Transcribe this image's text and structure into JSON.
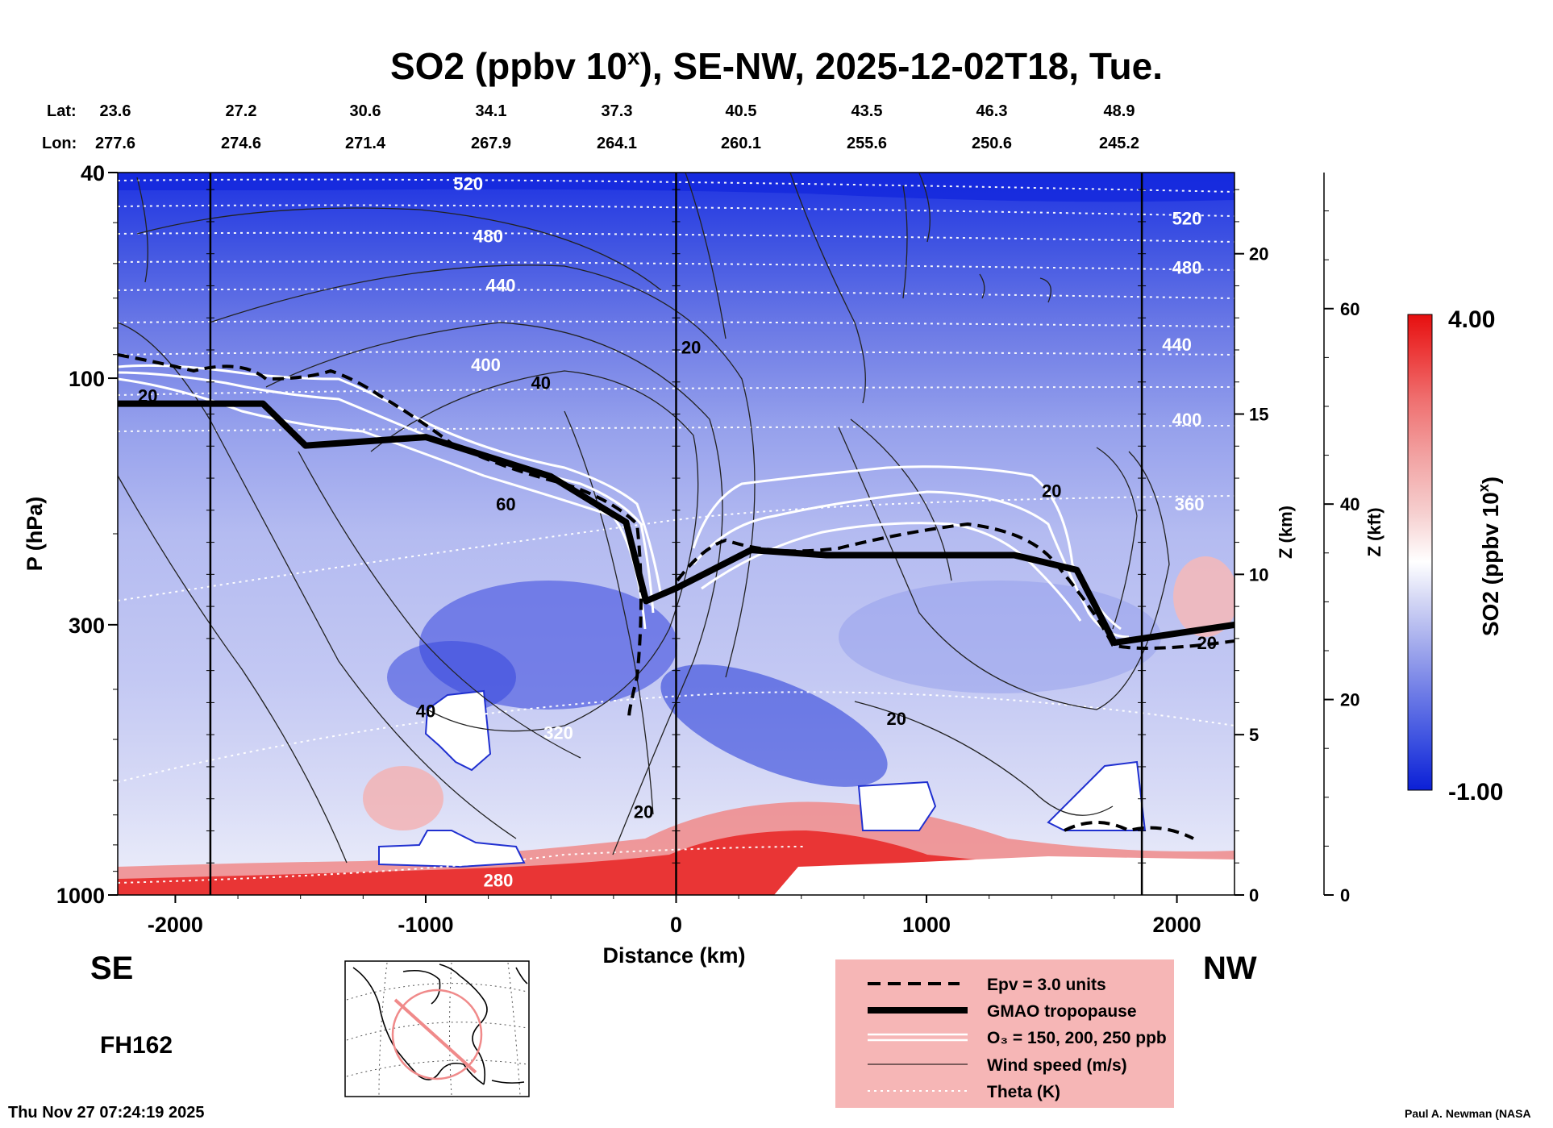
{
  "title": "SO2 (ppbv 10",
  "title_sup": "x",
  "title_rest": "), SE-NW, 2025-12-02T18, Tue.",
  "header": {
    "lat_label": "Lat:",
    "lon_label": "Lon:",
    "lat": [
      "23.6",
      "27.2",
      "30.6",
      "34.1",
      "37.3",
      "40.5",
      "43.5",
      "46.3",
      "48.9"
    ],
    "lon": [
      "277.6",
      "274.6",
      "271.4",
      "267.9",
      "264.1",
      "260.1",
      "255.6",
      "250.6",
      "245.2"
    ]
  },
  "labels": {
    "direction_left": "SE",
    "direction_right": "NW",
    "forecast_hour": "FH162",
    "timestamp": "Thu Nov 27 07:24:19 2025",
    "credit": "Paul A. Newman (NASA"
  },
  "legend": {
    "items": [
      {
        "label": "Epv = 3.0 units",
        "style": "dashed-thick"
      },
      {
        "label": "GMAO tropopause",
        "style": "solid-heavy"
      },
      {
        "label": "O₃ = 150, 200, 250 ppb",
        "style": "double-white"
      },
      {
        "label": "Wind speed (m/s)",
        "style": "thin-black"
      },
      {
        "label": "Theta (K)",
        "style": "dotted-white"
      }
    ]
  },
  "colorbar": {
    "max_label": "4.00",
    "min_label": "-1.00",
    "title": "SO2 (ppbv 10",
    "title_sup": "x",
    "title_end": ")",
    "colors": [
      "#0b1fd6",
      "#3a4fe0",
      "#6c7ae6",
      "#a0a8ec",
      "#d4d7f5",
      "#ffffff",
      "#f6d0d0",
      "#f2a3a3",
      "#ef7070",
      "#ec3a3a",
      "#e60f0f"
    ]
  },
  "colors": {
    "background_field": "#a9b1ee",
    "upper_field": "#2f45e6",
    "surface_red": "#ee3030",
    "legend_bg": "#f6b6b6"
  },
  "chart_data": {
    "type": "heatmap",
    "title": "SO2 (ppbv 10^x), SE-NW, 2025-12-02T18, Tue.",
    "xlabel": "Distance (km)",
    "ylabel": "P (hPa)",
    "y2label": "Z (km)",
    "y3label": "Z (kft)",
    "xlim": [
      -2230,
      2230
    ],
    "ylim_pressure": [
      1000,
      40
    ],
    "x_ticks": [
      "-2000",
      "-1000",
      "0",
      "1000",
      "2000"
    ],
    "x_tick_values": [
      -2000,
      -1000,
      0,
      1000,
      2000
    ],
    "p_ticks": [
      "40",
      "100",
      "300",
      "1000"
    ],
    "p_tick_values": [
      40,
      100,
      300,
      1000
    ],
    "z_km_ticks": [
      "0",
      "5",
      "10",
      "15",
      "20"
    ],
    "z_km_values": [
      0,
      5,
      10,
      15,
      20
    ],
    "z_kft_ticks": [
      "0",
      "20",
      "40",
      "60"
    ],
    "z_kft_values": [
      0,
      20,
      40,
      60
    ],
    "colorbar_range": [
      -1.0,
      4.0
    ],
    "theta_contours": [
      {
        "label": "520",
        "x_km": -830,
        "p": 42
      },
      {
        "label": "480",
        "x_km": -750,
        "p": 53
      },
      {
        "label": "440",
        "x_km": -700,
        "p": 66
      },
      {
        "label": "400",
        "x_km": -760,
        "p": 94
      },
      {
        "label": "520",
        "x_km": 2040,
        "p": 49
      },
      {
        "label": "480",
        "x_km": 2040,
        "p": 61
      },
      {
        "label": "440",
        "x_km": 2000,
        "p": 86
      },
      {
        "label": "400",
        "x_km": 2040,
        "p": 120
      },
      {
        "label": "360",
        "x_km": 2050,
        "p": 175
      },
      {
        "label": "320",
        "x_km": -470,
        "p": 485
      },
      {
        "label": "280",
        "x_km": -710,
        "p": 935
      }
    ],
    "wind_speed_contours": [
      {
        "label": "20",
        "x_km": -2110,
        "p": 108
      },
      {
        "label": "40",
        "x_km": -540,
        "p": 102
      },
      {
        "label": "60",
        "x_km": -680,
        "p": 175
      },
      {
        "label": "40",
        "x_km": -1000,
        "p": 440
      },
      {
        "label": "20",
        "x_km": -130,
        "p": 690
      },
      {
        "label": "20",
        "x_km": 60,
        "p": 87
      },
      {
        "label": "20",
        "x_km": 1500,
        "p": 165
      },
      {
        "label": "20",
        "x_km": 880,
        "p": 455
      },
      {
        "label": "20",
        "x_km": 2120,
        "p": 325
      }
    ],
    "lat": [
      23.6,
      27.2,
      30.6,
      34.1,
      37.3,
      40.5,
      43.5,
      46.3,
      48.9
    ],
    "lon": [
      277.6,
      274.6,
      271.4,
      267.9,
      264.1,
      260.1,
      255.6,
      250.6,
      245.2
    ],
    "tropopause_hpa": [
      {
        "x_km": -2230,
        "p": 112
      },
      {
        "x_km": -1650,
        "p": 112
      },
      {
        "x_km": -1480,
        "p": 135
      },
      {
        "x_km": -1000,
        "p": 130
      },
      {
        "x_km": -500,
        "p": 155
      },
      {
        "x_km": -200,
        "p": 190
      },
      {
        "x_km": -120,
        "p": 270
      },
      {
        "x_km": 0,
        "p": 255
      },
      {
        "x_km": 300,
        "p": 215
      },
      {
        "x_km": 600,
        "p": 220
      },
      {
        "x_km": 1350,
        "p": 220
      },
      {
        "x_km": 1600,
        "p": 235
      },
      {
        "x_km": 1750,
        "p": 325
      },
      {
        "x_km": 2230,
        "p": 300
      }
    ],
    "vertical_markers_km": [
      -1860,
      0,
      1860
    ]
  }
}
